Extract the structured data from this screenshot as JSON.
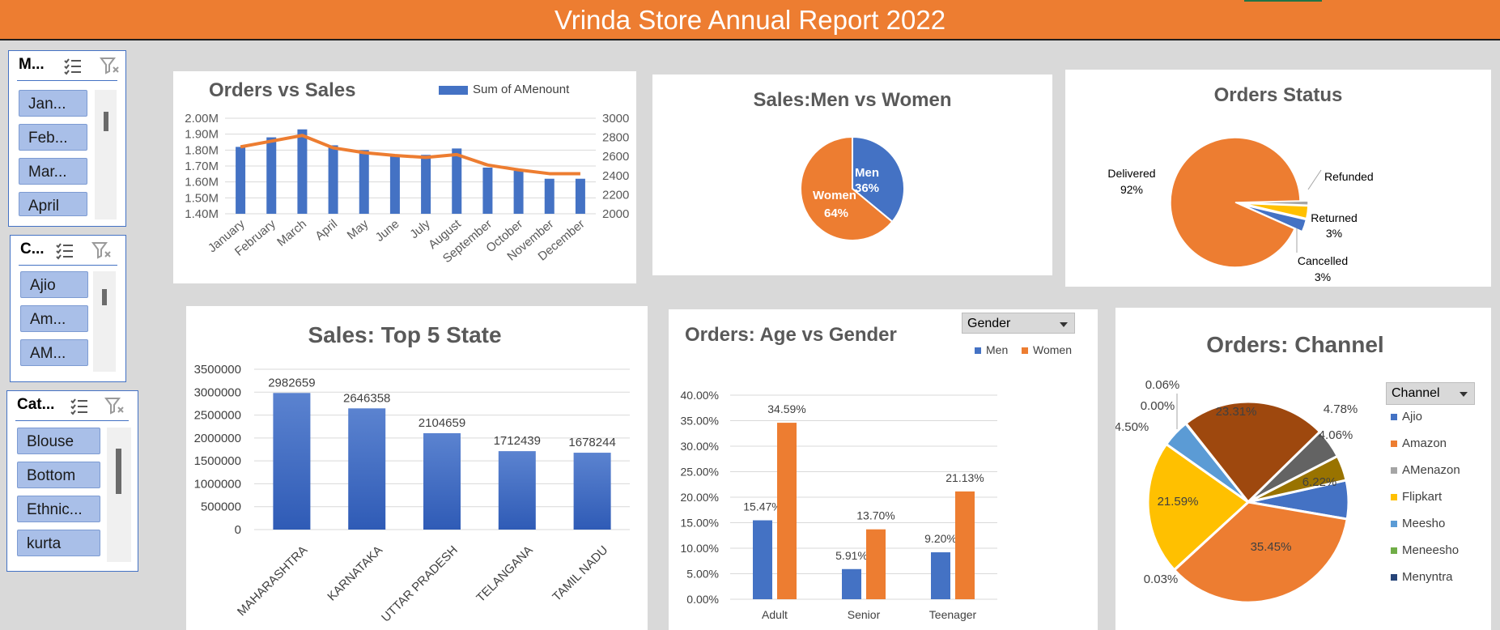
{
  "report_title": "Vrinda Store Annual Report 2022",
  "slicers": {
    "month": {
      "title": "M...",
      "items": [
        "Jan...",
        "Feb...",
        "Mar...",
        "April"
      ]
    },
    "channel": {
      "title": "C...",
      "items": [
        "Ajio",
        "Am...",
        "AM..."
      ]
    },
    "category": {
      "title": "Cat...",
      "items": [
        "Blouse",
        "Bottom",
        "Ethnic...",
        "kurta"
      ]
    }
  },
  "colors": {
    "blue": "#4472c4",
    "orange": "#ed7d31",
    "gray": "#a5a5a5",
    "yellow": "#ffc000",
    "lightblue": "#5b9bd5",
    "green": "#70ad47",
    "navy": "#264478",
    "brown": "#9e480e",
    "darkgray": "#636363",
    "olive": "#997300"
  },
  "gender_dropdown": "Gender",
  "channel_dropdown": "Channel",
  "chart_data": [
    {
      "id": "orders_vs_sales",
      "type": "bar",
      "title": "Orders vs Sales",
      "legend": "Sum of AMenount",
      "categories": [
        "January",
        "February",
        "March",
        "April",
        "May",
        "June",
        "July",
        "August",
        "September",
        "October",
        "November",
        "December"
      ],
      "series": [
        {
          "name": "Sum of AMenount",
          "type": "bar",
          "values": [
            1.82,
            1.88,
            1.93,
            1.83,
            1.8,
            1.76,
            1.77,
            1.81,
            1.69,
            1.67,
            1.62,
            1.62
          ]
        },
        {
          "type": "line",
          "values": [
            2700,
            2760,
            2820,
            2690,
            2640,
            2610,
            2590,
            2620,
            2510,
            2460,
            2420,
            2420
          ]
        }
      ],
      "y_left_ticks": [
        "2.00M",
        "1.90M",
        "1.80M",
        "1.70M",
        "1.60M",
        "1.50M",
        "1.40M"
      ],
      "y_left_range": [
        1.4,
        2.0
      ],
      "y_right_ticks": [
        "3000",
        "2800",
        "2600",
        "2400",
        "2200",
        "2000"
      ],
      "y_right_range": [
        2000,
        3000
      ]
    },
    {
      "id": "sales_men_women",
      "type": "pie",
      "title": "Sales:Men vs Women",
      "slices": [
        {
          "label": "Men",
          "pct_label": "36%",
          "value": 36
        },
        {
          "label": "Women",
          "pct_label": "64%",
          "value": 64
        }
      ]
    },
    {
      "id": "orders_status",
      "type": "pie",
      "title": "Orders Status",
      "slices": [
        {
          "label": "Delivered",
          "pct_label": "92%",
          "value": 92
        },
        {
          "label": "Refunded",
          "pct_label": "",
          "value": 1
        },
        {
          "label": "Returned",
          "pct_label": "3%",
          "value": 3
        },
        {
          "label": "Cancelled",
          "pct_label": "3%",
          "value": 3
        }
      ]
    },
    {
      "id": "top5_state",
      "type": "bar",
      "title": "Sales: Top 5 State",
      "categories": [
        "MAHARASHTRA",
        "KARNATAKA",
        "UTTAR PRADESH",
        "TELANGANA",
        "TAMIL NADU"
      ],
      "values": [
        2982659,
        2646358,
        2104659,
        1712439,
        1678244
      ],
      "y_ticks": [
        "3500000",
        "3000000",
        "2500000",
        "2000000",
        "1500000",
        "1000000",
        "500000",
        "0"
      ],
      "ylim": [
        0,
        3500000
      ]
    },
    {
      "id": "age_vs_gender",
      "type": "bar",
      "title": "Orders: Age vs Gender",
      "categories": [
        "Adult",
        "Senior",
        "Teenager"
      ],
      "series": [
        {
          "name": "Men",
          "values": [
            15.47,
            5.91,
            9.2
          ],
          "labels": [
            "15.47%",
            "5.91%",
            "9.20%"
          ]
        },
        {
          "name": "Women",
          "values": [
            34.59,
            13.7,
            21.13
          ],
          "labels": [
            "34.59%",
            "13.70%",
            "21.13%"
          ]
        }
      ],
      "y_ticks": [
        "40.00%",
        "35.00%",
        "30.00%",
        "25.00%",
        "20.00%",
        "15.00%",
        "10.00%",
        "5.00%",
        "0.00%"
      ],
      "ylim": [
        0,
        40
      ]
    },
    {
      "id": "orders_channel",
      "type": "pie",
      "title": "Orders: Channel",
      "legend": [
        "Ajio",
        "Amazon",
        "AMenazon",
        "Flipkart",
        "Meesho",
        "Meneesho",
        "Menyntra"
      ],
      "slices": [
        {
          "label": "Ajio",
          "pct_label": "6.22%",
          "value": 6.22
        },
        {
          "label": "Amazon",
          "pct_label": "35.45%",
          "value": 35.45
        },
        {
          "label": "AMenazon",
          "pct_label": "0.03%",
          "value": 0.03
        },
        {
          "label": "Flipkart",
          "pct_label": "21.59%",
          "value": 21.59
        },
        {
          "label": "Meesho",
          "pct_label": "4.50%",
          "value": 4.5
        },
        {
          "label": "Meneesho",
          "pct_label": "0.00%",
          "value": 0.0
        },
        {
          "label": "Menyntra",
          "pct_label": "0.06%",
          "value": 0.06
        },
        {
          "label": "",
          "pct_label": "23.31%",
          "value": 23.31
        },
        {
          "label": "",
          "pct_label": "4.78%",
          "value": 4.78
        },
        {
          "label": "",
          "pct_label": "4.06%",
          "value": 4.06
        }
      ]
    }
  ]
}
